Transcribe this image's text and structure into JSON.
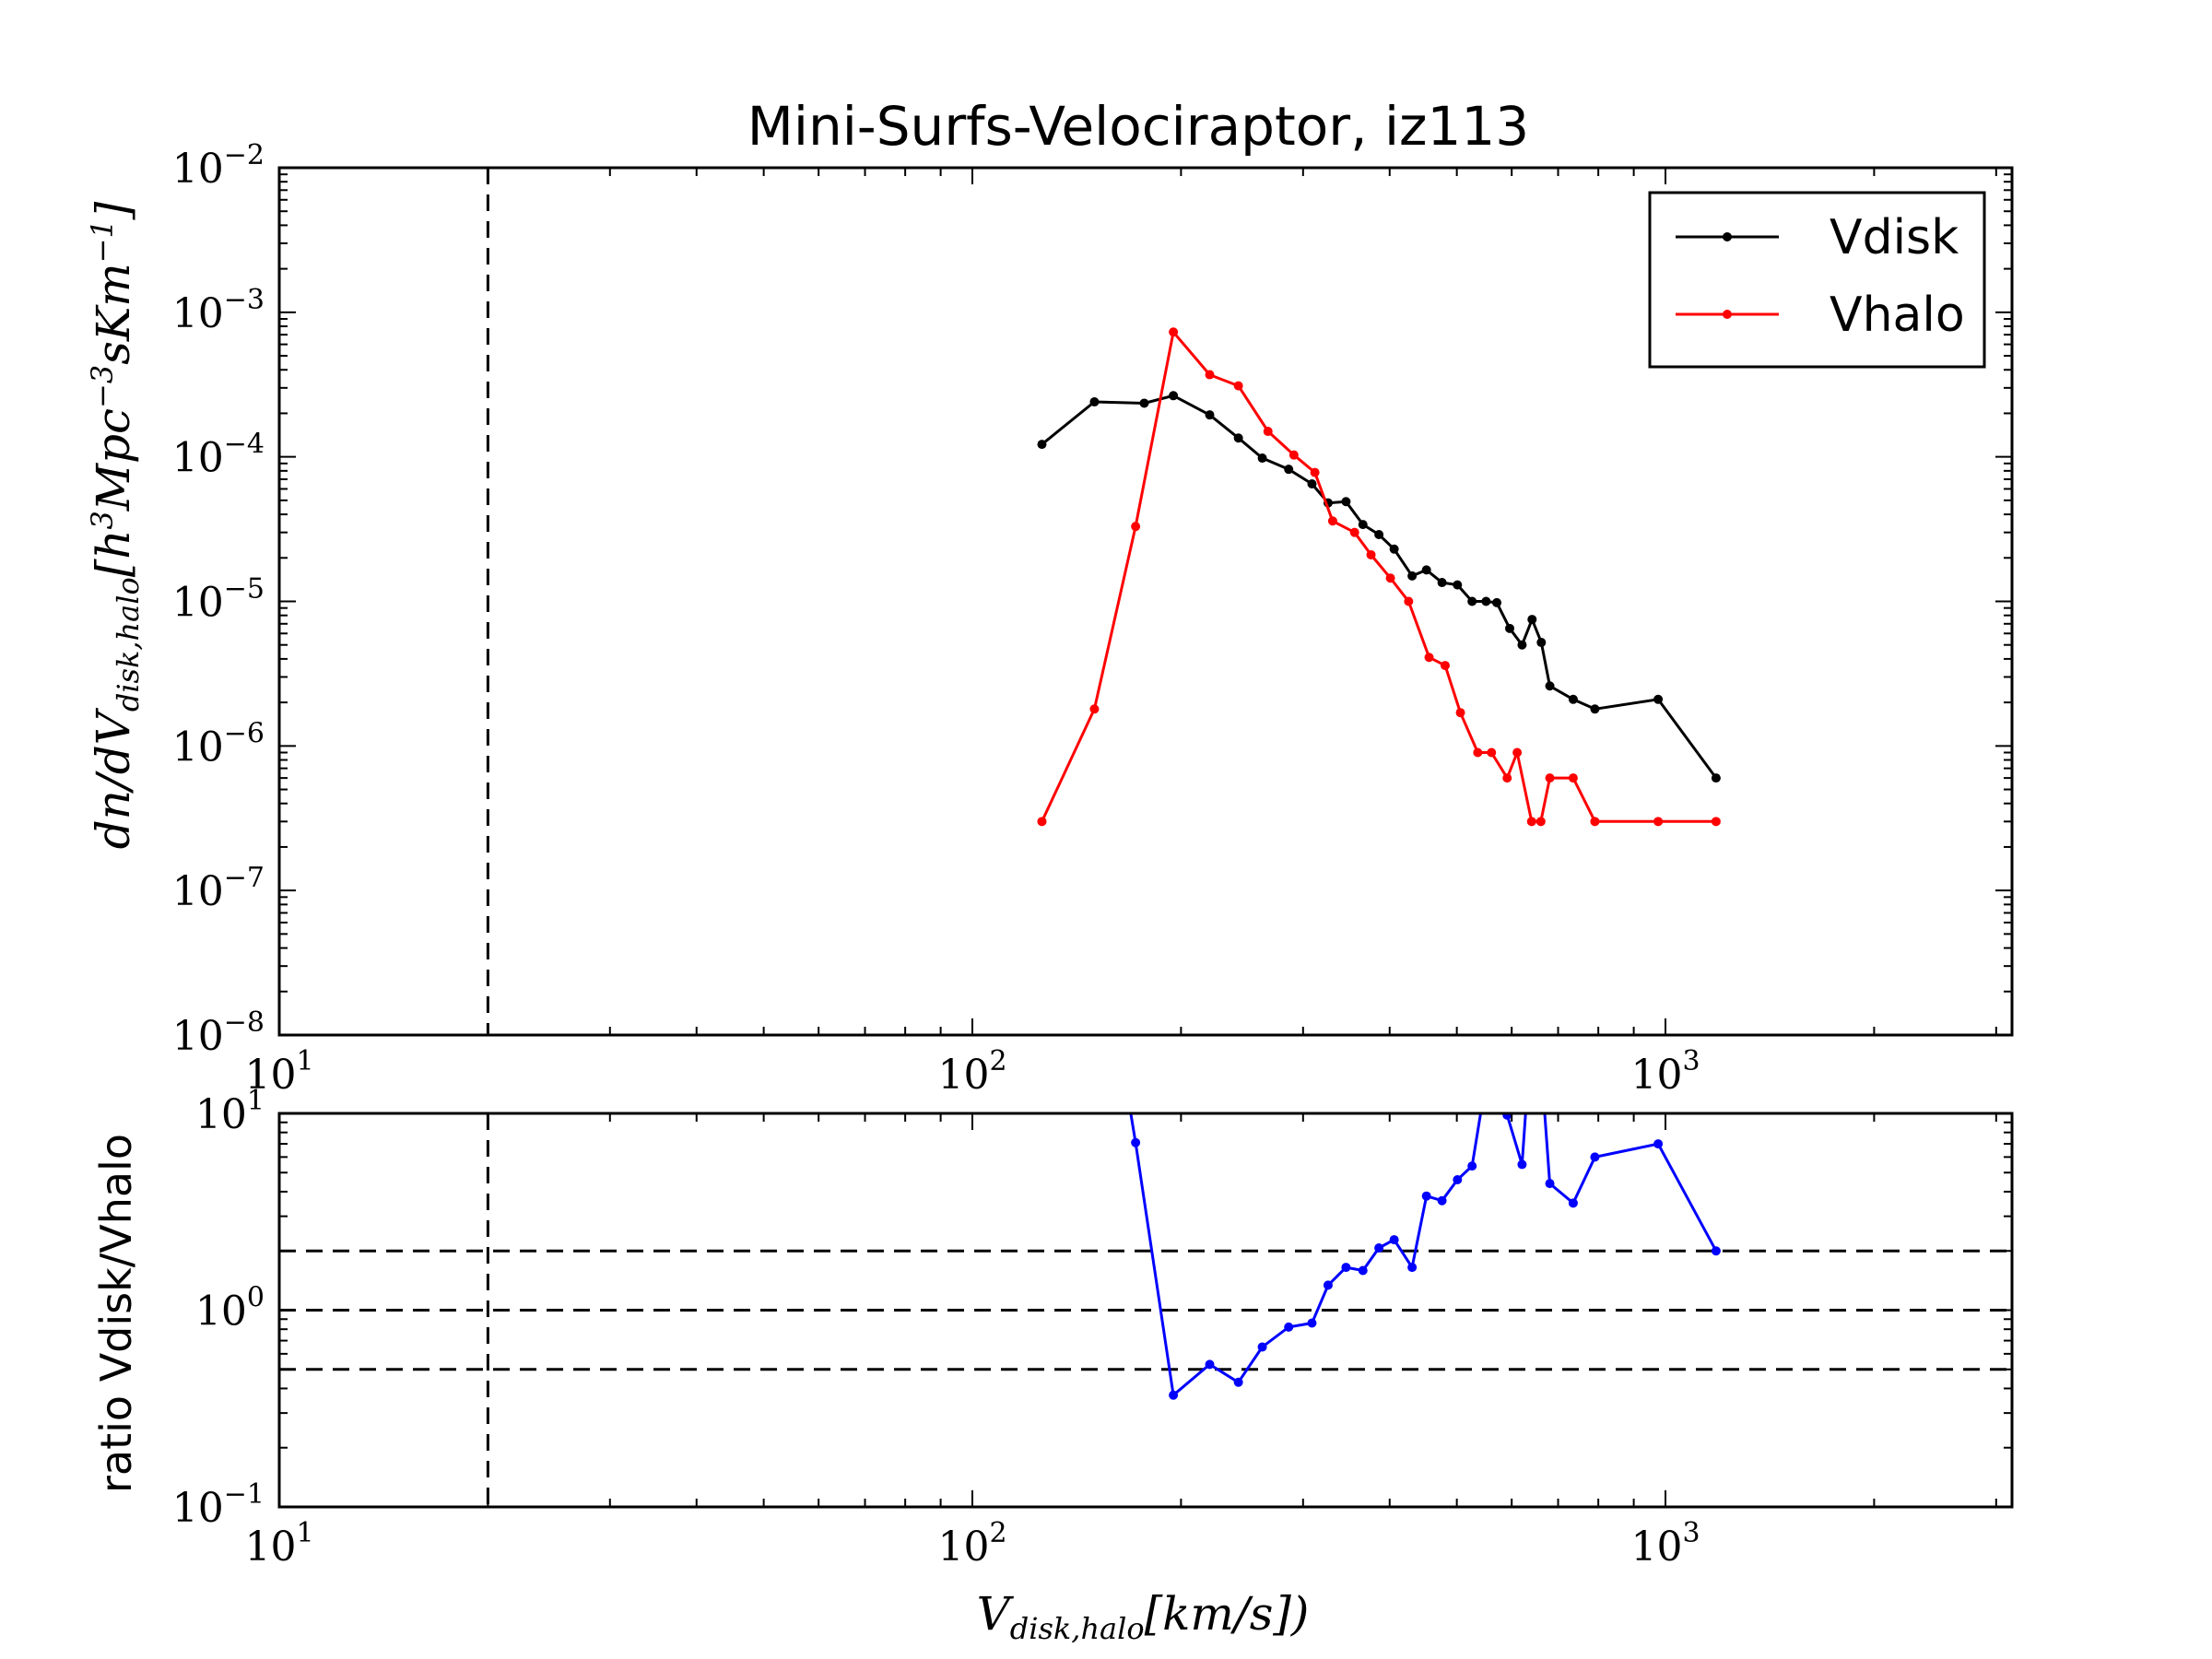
{
  "chart_data": [
    {
      "type": "line",
      "title": "Mini-Surfs-Velociraptor, iz113",
      "xlabel": "V_{disk,halo}[km/s])",
      "ylabel": "dn/dV_{disk,halo}[h^3Mpc^{-3}sKm^{-1}]",
      "xscale": "log",
      "yscale": "log",
      "xlim": [
        10,
        3162
      ],
      "ylim": [
        1e-08,
        0.01
      ],
      "xticks": [
        {
          "base": "10",
          "exp": "1",
          "value": 10
        },
        {
          "base": "10",
          "exp": "2",
          "value": 100
        },
        {
          "base": "10",
          "exp": "3",
          "value": 1000
        }
      ],
      "yticks": [
        {
          "base": "10",
          "exp": "−8",
          "value": 1e-08
        },
        {
          "base": "10",
          "exp": "−7",
          "value": 1e-07
        },
        {
          "base": "10",
          "exp": "−6",
          "value": 1e-06
        },
        {
          "base": "10",
          "exp": "−5",
          "value": 1e-05
        },
        {
          "base": "10",
          "exp": "−4",
          "value": 0.0001
        },
        {
          "base": "10",
          "exp": "−3",
          "value": 0.001
        },
        {
          "base": "10",
          "exp": "−2",
          "value": 0.01
        }
      ],
      "vline_x": 20,
      "legend": "upper-right",
      "series": [
        {
          "name": "Vdisk",
          "color": "#000000",
          "points": [
            [
              126,
              0.000122
            ],
            [
              150,
              0.00024
            ],
            [
              177,
              0.000235
            ],
            [
              195,
              0.000265
            ],
            [
              220,
              0.000195
            ],
            [
              242,
              0.000135
            ],
            [
              262,
              9.8e-05
            ],
            [
              286,
              8.2e-05
            ],
            [
              309,
              6.5e-05
            ],
            [
              326,
              4.8e-05
            ],
            [
              346,
              4.9e-05
            ],
            [
              366,
              3.4e-05
            ],
            [
              386,
              2.9e-05
            ],
            [
              406,
              2.3e-05
            ],
            [
              431,
              1.5e-05
            ],
            [
              452,
              1.65e-05
            ],
            [
              476,
              1.35e-05
            ],
            [
              501,
              1.3e-05
            ],
            [
              526,
              1e-05
            ],
            [
              551,
              1e-05
            ],
            [
              571,
              9.8e-06
            ],
            [
              596,
              6.5e-06
            ],
            [
              621,
              5e-06
            ],
            [
              642,
              7.5e-06
            ],
            [
              662,
              5.2e-06
            ],
            [
              681,
              2.6e-06
            ],
            [
              736,
              2.1e-06
            ],
            [
              791,
              1.8e-06
            ],
            [
              976,
              2.1e-06
            ],
            [
              1183,
              6e-07
            ]
          ]
        },
        {
          "name": "Vhalo",
          "color": "#ff0000",
          "points": [
            [
              126,
              3e-07
            ],
            [
              150,
              1.8e-06
            ],
            [
              172,
              3.3e-05
            ],
            [
              195,
              0.00073
            ],
            [
              220,
              0.00037
            ],
            [
              242,
              0.00031
            ],
            [
              267,
              0.00015
            ],
            [
              291,
              0.000103
            ],
            [
              312,
              7.8e-05
            ],
            [
              331,
              3.6e-05
            ],
            [
              356,
              3e-05
            ],
            [
              376,
              2.1e-05
            ],
            [
              401,
              1.45e-05
            ],
            [
              426,
              1e-05
            ],
            [
              456,
              4.1e-06
            ],
            [
              481,
              3.6e-06
            ],
            [
              506,
              1.7e-06
            ],
            [
              536,
              9e-07
            ],
            [
              561,
              9e-07
            ],
            [
              591,
              6e-07
            ],
            [
              611,
              9e-07
            ],
            [
              641,
              3e-07
            ],
            [
              661,
              3e-07
            ],
            [
              681,
              6e-07
            ],
            [
              736,
              6e-07
            ],
            [
              791,
              3e-07
            ],
            [
              976,
              3e-07
            ],
            [
              1183,
              3e-07
            ]
          ]
        }
      ]
    },
    {
      "type": "line",
      "xlabel": "V_{disk,halo}[km/s])",
      "ylabel": "ratio Vdisk/Vhalo",
      "xscale": "log",
      "yscale": "log",
      "xlim": [
        10,
        3162
      ],
      "ylim": [
        0.1,
        10
      ],
      "xticks": [
        {
          "base": "10",
          "exp": "1",
          "value": 10
        },
        {
          "base": "10",
          "exp": "2",
          "value": 100
        },
        {
          "base": "10",
          "exp": "3",
          "value": 1000
        }
      ],
      "yticks": [
        {
          "base": "10",
          "exp": "−1",
          "value": 0.1
        },
        {
          "base": "10",
          "exp": "0",
          "value": 1
        },
        {
          "base": "10",
          "exp": "1",
          "value": 10
        }
      ],
      "vline_x": 20,
      "hlines_y": [
        2,
        1,
        0.5
      ],
      "series": [
        {
          "name": "",
          "color": "#0000ff",
          "points": [
            [
              150,
              133
            ],
            [
              172,
              7.1
            ],
            [
              195,
              0.37
            ],
            [
              220,
              0.53
            ],
            [
              242,
              0.43
            ],
            [
              262,
              0.65
            ],
            [
              286,
              0.82
            ],
            [
              309,
              0.86
            ],
            [
              326,
              1.34
            ],
            [
              346,
              1.65
            ],
            [
              366,
              1.59
            ],
            [
              386,
              2.07
            ],
            [
              406,
              2.28
            ],
            [
              431,
              1.65
            ],
            [
              452,
              3.8
            ],
            [
              476,
              3.6
            ],
            [
              501,
              4.6
            ],
            [
              526,
              5.4
            ],
            [
              571,
              32
            ],
            [
              591,
              9.8
            ],
            [
              621,
              5.5
            ],
            [
              642,
              30
            ],
            [
              662,
              17.3
            ],
            [
              681,
              4.4
            ],
            [
              736,
              3.5
            ],
            [
              791,
              6.0
            ],
            [
              976,
              7.0
            ],
            [
              1183,
              2.0
            ]
          ]
        }
      ]
    }
  ],
  "legend_entries": [
    "Vdisk",
    "Vhalo"
  ],
  "colors": {
    "vdisk": "#000000",
    "vhalo": "#ff0000",
    "ratio": "#0000ff"
  }
}
